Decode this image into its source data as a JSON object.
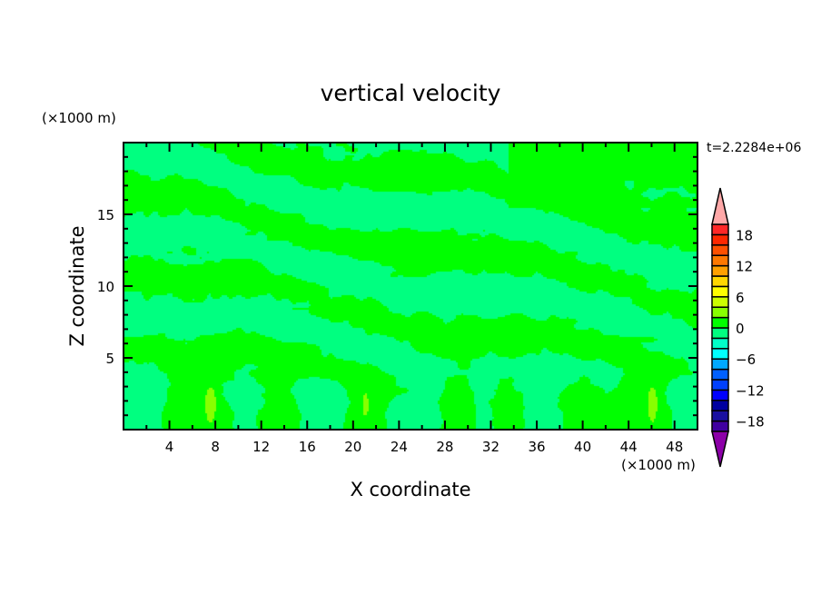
{
  "chart_data": {
    "type": "heatmap",
    "subtype": "filled-contour",
    "title": "vertical velocity",
    "xlabel": "X coordinate",
    "ylabel": "Z coordinate",
    "x_unit": "(×1000 m)",
    "y_unit": "(×1000 m)",
    "time_label": "t=2.2284e+06",
    "xlim": [
      0,
      50
    ],
    "ylim": [
      0,
      20
    ],
    "xticks": [
      4,
      8,
      12,
      16,
      20,
      24,
      28,
      32,
      36,
      40,
      44,
      48
    ],
    "yticks": [
      5,
      10,
      15
    ],
    "colorbar": {
      "levels": [
        -20,
        -18,
        -16,
        -14,
        -12,
        -10,
        -8,
        -6,
        -4,
        -2,
        0,
        2,
        4,
        6,
        8,
        10,
        12,
        14,
        16,
        18,
        20
      ],
      "tick_labels": [
        "18",
        "12",
        "6",
        "0",
        "−6",
        "−12",
        "−18"
      ],
      "tick_values": [
        18,
        12,
        6,
        0,
        -6,
        -12,
        -18
      ],
      "colors_bottom_to_top": [
        "#4000a0",
        "#1a10a0",
        "#0000a0",
        "#0000ff",
        "#0040ff",
        "#0060ff",
        "#00a8ff",
        "#00ffff",
        "#00ffc8",
        "#00ff80",
        "#00ff00",
        "#88ff00",
        "#ccff00",
        "#ffff00",
        "#ffd700",
        "#ffa000",
        "#ff7800",
        "#ff5000",
        "#ff2800",
        "#ff2828"
      ],
      "under_color": "#8c00a8",
      "over_color": "#ffa8a8",
      "extend": "both"
    },
    "field_summary": "values mostly between -2 and 2; background -2..0 (#00ff80), banded patches 0..2 (#00ff00), small maxima 2..4 near x=7.5,z=1.8 and x=46,z=1.8 and x=21,z=1.8"
  }
}
